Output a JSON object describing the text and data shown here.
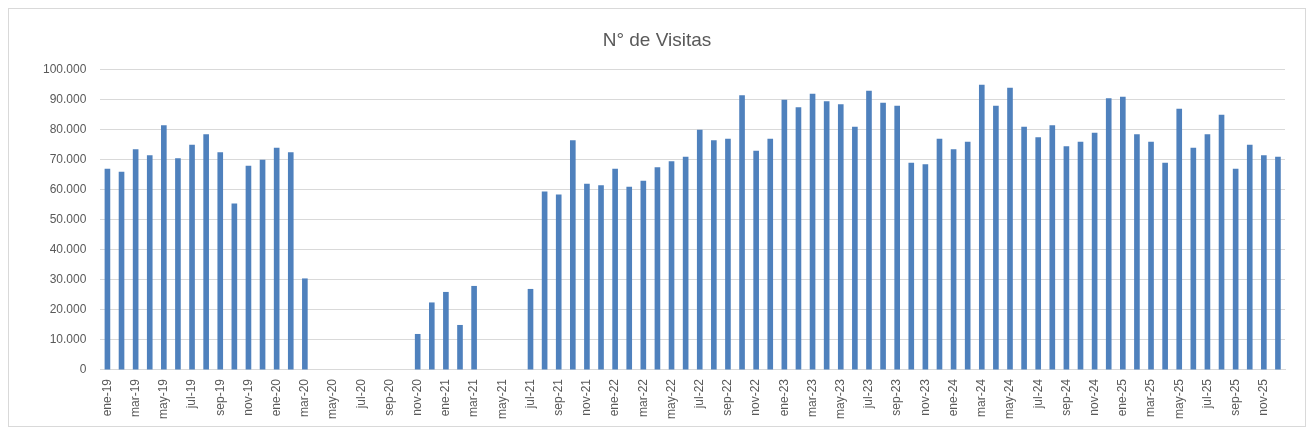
{
  "chart_data": {
    "type": "bar",
    "title": "N° de Visitas",
    "categories": [
      "ene-19",
      null,
      "mar-19",
      null,
      "may-19",
      null,
      "jul-19",
      null,
      "sep-19",
      null,
      "nov-19",
      null,
      "ene-20",
      null,
      "mar-20",
      null,
      "may-20",
      null,
      "jul-20",
      null,
      "sep-20",
      null,
      "nov-20",
      null,
      "ene-21",
      null,
      "mar-21",
      null,
      "may-21",
      null,
      "jul-21",
      null,
      "sep-21",
      null,
      "nov-21",
      null,
      "ene-22",
      null,
      "mar-22",
      null,
      "may-22",
      null,
      "jul-22",
      null,
      "sep-22",
      null,
      "nov-22",
      null,
      "ene-23",
      null,
      "mar-23",
      null,
      "may-23",
      null,
      "jul-23",
      null,
      "sep-23",
      null,
      "nov-23",
      null,
      "ene-24",
      null,
      "mar-24",
      null,
      "may-24",
      null,
      "jul-24",
      null,
      "sep-24",
      null,
      "nov-24",
      null,
      "ene-25",
      null,
      "mar-25",
      null,
      "may-25",
      null,
      "jul-25",
      null,
      "sep-25",
      null,
      "nov-25",
      null
    ],
    "series": [
      {
        "color": "#4f81bd",
        "values": [
          67000,
          66000,
          73500,
          71500,
          81500,
          70500,
          75000,
          78500,
          72500,
          55500,
          68000,
          70000,
          74000,
          72500,
          30500,
          null,
          null,
          null,
          null,
          null,
          null,
          null,
          12000,
          22500,
          26000,
          15000,
          28000,
          null,
          null,
          null,
          27000,
          59500,
          58500,
          76500,
          62000,
          61500,
          67000,
          61000,
          63000,
          67500,
          69500,
          71000,
          80000,
          76500,
          77000,
          91500,
          73000,
          77000,
          90000,
          87500,
          92000,
          89500,
          88500,
          81000,
          93000,
          89000,
          88000,
          69000,
          68500,
          77000,
          73500,
          76000,
          95000,
          88000,
          94000,
          81000,
          77500,
          81500,
          74500,
          76000,
          79000,
          90500,
          91000,
          78500,
          76000,
          69000,
          87000,
          74000,
          78500,
          85000,
          67000,
          75000,
          71500,
          71000
        ]
      }
    ],
    "ylim": [
      0,
      100000
    ],
    "yticks": [
      {
        "value": 0,
        "label": "0"
      },
      {
        "value": 10000,
        "label": "10.000"
      },
      {
        "value": 20000,
        "label": "20.000"
      },
      {
        "value": 30000,
        "label": "30.000"
      },
      {
        "value": 40000,
        "label": "40.000"
      },
      {
        "value": 50000,
        "label": "50.000"
      },
      {
        "value": 60000,
        "label": "60.000"
      },
      {
        "value": 70000,
        "label": "70.000"
      },
      {
        "value": 80000,
        "label": "80.000"
      },
      {
        "value": 90000,
        "label": "90.000"
      },
      {
        "value": 100000,
        "label": "100.000"
      }
    ],
    "grid": "y",
    "legend": false
  }
}
